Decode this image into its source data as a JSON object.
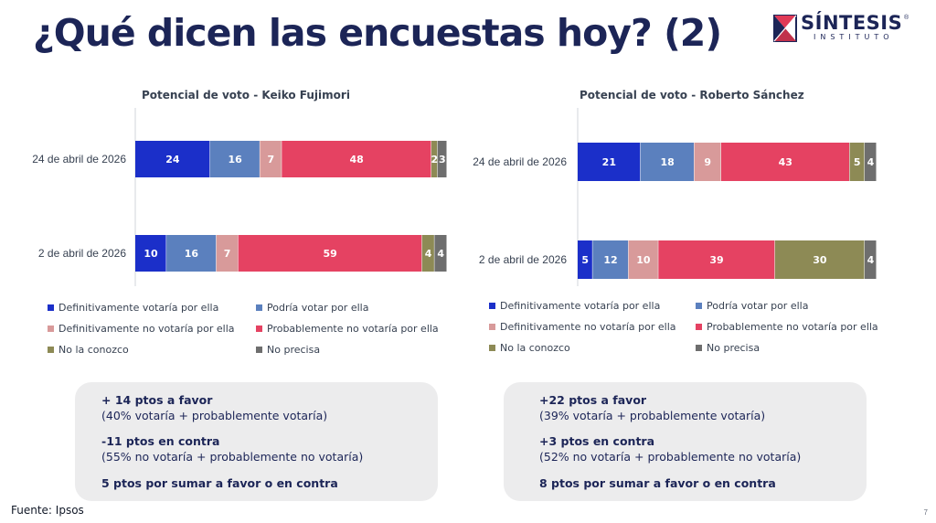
{
  "slide": {
    "title": "¿Qué dicen las encuestas hoy? (2)",
    "logo_name": "SÍNTESIS",
    "logo_sub": "INSTITUTO",
    "logo_reg": "®",
    "source": "Fuente: Ipsos",
    "page_number": "7"
  },
  "colors": {
    "title": "#1c2557",
    "def_yes": "#1b2fc9",
    "could_yes": "#5b80be",
    "def_no": "#d89a9a",
    "prob_no": "#e54262",
    "unknown": "#8d8a55",
    "not_sure": "#6e6e6e",
    "box_bg": "#ececed"
  },
  "legend": [
    {
      "label": "Definitivamente votaría por ella",
      "color": "#1b2fc9"
    },
    {
      "label": "Podría votar por ella",
      "color": "#5b80be"
    },
    {
      "label": "Definitivamente no votaría por ella",
      "color": "#d89a9a"
    },
    {
      "label": "Probablemente no votaría por ella",
      "color": "#e54262"
    },
    {
      "label": "No la conozco",
      "color": "#8d8a55"
    },
    {
      "label": "No precisa",
      "color": "#6e6e6e"
    }
  ],
  "chart_data": [
    {
      "type": "bar",
      "orientation": "horizontal",
      "stacked": true,
      "title": "Potencial de voto - Keiko Fujimori",
      "categories": [
        "24 de abril de 2026",
        "2 de abril de 2026"
      ],
      "series": [
        {
          "name": "Definitivamente votaría por ella",
          "values": [
            24,
            10
          ]
        },
        {
          "name": "Podría votar por ella",
          "values": [
            16,
            16
          ]
        },
        {
          "name": "Definitivamente no votaría por ella",
          "values": [
            7,
            7
          ]
        },
        {
          "name": "Probablemente no votaría por ella",
          "values": [
            48,
            59
          ]
        },
        {
          "name": "No la conozco",
          "values": [
            2,
            4
          ]
        },
        {
          "name": "No precisa",
          "values": [
            3,
            4
          ]
        }
      ],
      "legend_position": "bottom"
    },
    {
      "type": "bar",
      "orientation": "horizontal",
      "stacked": true,
      "title": "Potencial de voto - Roberto Sánchez",
      "categories": [
        "24 de abril de 2026",
        "2 de abril de 2026"
      ],
      "series": [
        {
          "name": "Definitivamente votaría por ella",
          "values": [
            21,
            5
          ]
        },
        {
          "name": "Podría votar por ella",
          "values": [
            18,
            12
          ]
        },
        {
          "name": "Definitivamente no votaría por ella",
          "values": [
            9,
            10
          ]
        },
        {
          "name": "Probablemente no votaría por ella",
          "values": [
            43,
            39
          ]
        },
        {
          "name": "No la conozco",
          "values": [
            5,
            30
          ]
        },
        {
          "name": "No precisa",
          "values": [
            4,
            4
          ]
        }
      ],
      "legend_position": "bottom"
    }
  ],
  "boxes": [
    {
      "favor": "+ 14 ptos a favor",
      "favor_detail": "(40% votaría  + probablemente votaría)",
      "contra": "-11 ptos en contra",
      "contra_detail": "(55% no votaría + probablemente no votaría)",
      "remaining": "5 ptos por sumar a favor o en contra"
    },
    {
      "favor": "+22 ptos a favor",
      "favor_detail": "(39% votaría  + probablemente votaría)",
      "contra": "+3 ptos en contra",
      "contra_detail": "(52% no votaría + probablemente no votaría)",
      "remaining": "8 ptos por sumar a favor o en contra"
    }
  ]
}
